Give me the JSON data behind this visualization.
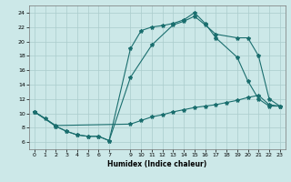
{
  "xlabel": "Humidex (Indice chaleur)",
  "bg_color": "#cce8e8",
  "grid_color": "#aacccc",
  "line_color": "#1a6e6e",
  "ylim": [
    5,
    25
  ],
  "xlim": [
    -0.5,
    23.5
  ],
  "yticks": [
    6,
    8,
    10,
    12,
    14,
    16,
    18,
    20,
    22,
    24
  ],
  "xticks": [
    0,
    1,
    2,
    3,
    4,
    5,
    6,
    7,
    9,
    10,
    11,
    12,
    13,
    14,
    15,
    16,
    17,
    18,
    19,
    20,
    21,
    22,
    23
  ],
  "curve1_x": [
    0,
    1,
    2,
    3,
    4,
    5,
    6,
    7,
    9,
    10,
    11,
    12,
    13,
    14,
    15,
    16,
    17,
    19,
    20,
    21,
    22,
    23
  ],
  "curve1_y": [
    10.2,
    9.3,
    8.2,
    7.5,
    7.0,
    6.8,
    6.8,
    6.2,
    19.0,
    21.5,
    22.0,
    22.2,
    22.5,
    23.0,
    24.0,
    22.5,
    20.5,
    17.8,
    14.5,
    12.0,
    11.0,
    11.0
  ],
  "curve2_x": [
    0,
    2,
    3,
    4,
    5,
    6,
    7,
    9,
    11,
    13,
    14,
    15,
    16,
    17,
    19,
    20,
    21,
    22,
    23
  ],
  "curve2_y": [
    10.2,
    8.2,
    7.5,
    7.0,
    6.8,
    6.8,
    6.2,
    15.0,
    19.5,
    22.3,
    22.8,
    23.5,
    22.3,
    21.0,
    20.5,
    20.5,
    18.0,
    12.0,
    11.0
  ],
  "curve3_x": [
    0,
    2,
    9,
    10,
    11,
    12,
    13,
    14,
    15,
    16,
    17,
    18,
    19,
    20,
    21,
    22,
    23
  ],
  "curve3_y": [
    10.2,
    8.3,
    8.5,
    9.0,
    9.5,
    9.8,
    10.2,
    10.5,
    10.8,
    11.0,
    11.2,
    11.5,
    11.8,
    12.2,
    12.5,
    11.2,
    11.0
  ]
}
